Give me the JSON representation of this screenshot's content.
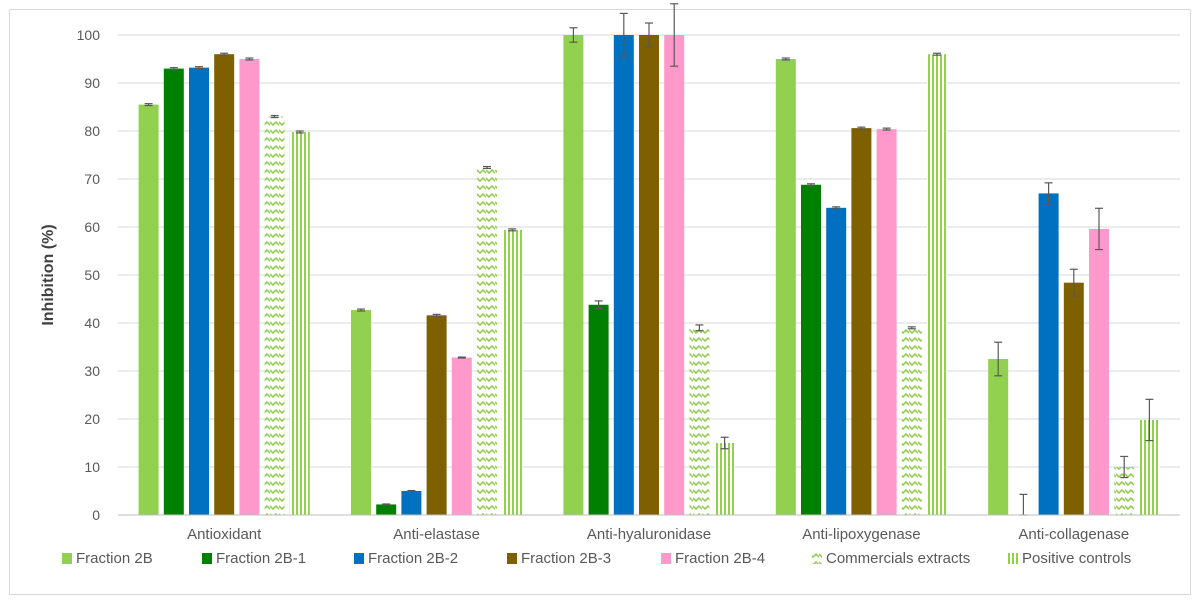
{
  "chart_data": {
    "type": "bar",
    "ylabel": "Inhibition (%)",
    "xlabel": "",
    "ylim": [
      0,
      100
    ],
    "yticks": [
      0,
      10,
      20,
      30,
      40,
      50,
      60,
      70,
      80,
      90,
      100
    ],
    "grid": true,
    "legend": "bottom",
    "categories": [
      "Antioxidant",
      "Anti-elastase",
      "Anti-hyaluronidase",
      "Anti-lipoxygenase",
      "Anti-collagenase"
    ],
    "series": [
      {
        "name": "Fraction 2B",
        "color": "#92d050",
        "pattern": "solid",
        "values": [
          85.5,
          42.7,
          100,
          95,
          32.5
        ],
        "errors": [
          0.2,
          0.2,
          1.5,
          0.2,
          3.5
        ]
      },
      {
        "name": "Fraction 2B-1",
        "color": "#008000",
        "pattern": "solid",
        "values": [
          93,
          2.2,
          43.8,
          68.8,
          0
        ],
        "errors": [
          0.2,
          0.1,
          0.8,
          0.2,
          4.3
        ]
      },
      {
        "name": "Fraction 2B-2",
        "color": "#0070c0",
        "pattern": "solid",
        "values": [
          93.2,
          5,
          100,
          64,
          67
        ],
        "errors": [
          0.2,
          0.1,
          4.5,
          0.2,
          2.2
        ]
      },
      {
        "name": "Fraction 2B-3",
        "color": "#7f6000",
        "pattern": "solid",
        "values": [
          96,
          41.6,
          100,
          80.6,
          48.4
        ],
        "errors": [
          0.2,
          0.2,
          2.5,
          0.2,
          2.8
        ]
      },
      {
        "name": "Fraction 2B-4",
        "color": "#ff99cc",
        "pattern": "solid",
        "values": [
          95,
          32.8,
          100,
          80.4,
          59.6
        ],
        "errors": [
          0.2,
          0.1,
          6.5,
          0.2,
          4.3
        ]
      },
      {
        "name": "Commercials extracts",
        "color": "#92d050",
        "pattern": "zigzag",
        "values": [
          83,
          72.4,
          39,
          39,
          10
        ],
        "errors": [
          0.2,
          0.2,
          0.6,
          0.2,
          2.2
        ]
      },
      {
        "name": "Positive controls",
        "color": "#92d050",
        "pattern": "vstripes",
        "values": [
          79.8,
          59.4,
          15,
          96,
          19.8
        ],
        "errors": [
          0.2,
          0.2,
          1.2,
          0.2,
          4.3
        ]
      }
    ]
  }
}
